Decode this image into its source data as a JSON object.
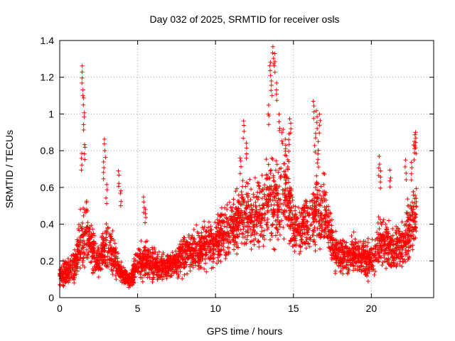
{
  "chart_data": {
    "type": "scatter",
    "title": "Day 032 of 2025, SRMTID for receiver osls",
    "xlabel": "GPS time / hours",
    "ylabel": "SRMTID / TECUs",
    "xlim": [
      0,
      24
    ],
    "ylim": [
      0,
      1.4
    ],
    "xticks": [
      "0",
      "5",
      "10",
      "15",
      "20"
    ],
    "yticks": [
      "0",
      "0.2",
      "0.4",
      "0.6",
      "0.8",
      "1",
      "1.2",
      "1.4"
    ],
    "grid": true,
    "marker": "+",
    "color": "#ff0000",
    "series": [
      {
        "name": "SRMTID",
        "profile": [
          [
            0.0,
            0.12,
            0.08
          ],
          [
            0.5,
            0.14,
            0.1
          ],
          [
            1.0,
            0.18,
            0.14
          ],
          [
            1.4,
            0.32,
            0.22
          ],
          [
            1.7,
            0.38,
            0.25
          ],
          [
            2.0,
            0.28,
            0.18
          ],
          [
            2.5,
            0.2,
            0.12
          ],
          [
            3.0,
            0.28,
            0.22
          ],
          [
            3.5,
            0.22,
            0.15
          ],
          [
            4.0,
            0.12,
            0.06
          ],
          [
            4.5,
            0.1,
            0.06
          ],
          [
            5.0,
            0.18,
            0.12
          ],
          [
            5.5,
            0.22,
            0.14
          ],
          [
            6.0,
            0.18,
            0.12
          ],
          [
            6.5,
            0.16,
            0.1
          ],
          [
            7.0,
            0.18,
            0.1
          ],
          [
            7.5,
            0.2,
            0.12
          ],
          [
            8.0,
            0.24,
            0.14
          ],
          [
            9.0,
            0.27,
            0.15
          ],
          [
            10.0,
            0.3,
            0.17
          ],
          [
            10.5,
            0.36,
            0.2
          ],
          [
            11.0,
            0.38,
            0.22
          ],
          [
            11.5,
            0.42,
            0.25
          ],
          [
            12.0,
            0.46,
            0.28
          ],
          [
            12.5,
            0.44,
            0.25
          ],
          [
            13.0,
            0.46,
            0.25
          ],
          [
            13.5,
            0.55,
            0.35
          ],
          [
            14.0,
            0.52,
            0.35
          ],
          [
            14.5,
            0.6,
            0.32
          ],
          [
            15.0,
            0.4,
            0.2
          ],
          [
            15.5,
            0.38,
            0.18
          ],
          [
            16.0,
            0.4,
            0.2
          ],
          [
            16.5,
            0.5,
            0.3
          ],
          [
            17.0,
            0.45,
            0.25
          ],
          [
            17.5,
            0.28,
            0.16
          ],
          [
            18.0,
            0.24,
            0.14
          ],
          [
            18.5,
            0.22,
            0.12
          ],
          [
            19.0,
            0.24,
            0.14
          ],
          [
            19.5,
            0.22,
            0.14
          ],
          [
            20.0,
            0.2,
            0.14
          ],
          [
            20.5,
            0.3,
            0.2
          ],
          [
            21.0,
            0.3,
            0.18
          ],
          [
            21.5,
            0.26,
            0.16
          ],
          [
            22.0,
            0.28,
            0.18
          ],
          [
            22.5,
            0.38,
            0.25
          ],
          [
            22.9,
            0.45,
            0.25
          ]
        ],
        "peaks": [
          [
            1.45,
            1.27
          ],
          [
            1.5,
            1.15
          ],
          [
            1.55,
            1.02
          ],
          [
            1.6,
            0.85
          ],
          [
            1.4,
            0.8
          ],
          [
            2.9,
            0.87
          ],
          [
            2.8,
            0.75
          ],
          [
            3.0,
            0.62
          ],
          [
            3.8,
            0.7
          ],
          [
            3.9,
            0.6
          ],
          [
            5.4,
            0.56
          ],
          [
            5.5,
            0.5
          ],
          [
            11.8,
            0.97
          ],
          [
            12.0,
            0.85
          ],
          [
            11.6,
            0.78
          ],
          [
            13.5,
            1.3
          ],
          [
            13.7,
            1.37
          ],
          [
            13.8,
            1.33
          ],
          [
            13.6,
            1.2
          ],
          [
            13.9,
            1.18
          ],
          [
            13.4,
            1.05
          ],
          [
            14.1,
            1.0
          ],
          [
            14.3,
            0.93
          ],
          [
            14.5,
            0.88
          ],
          [
            14.8,
            0.99
          ],
          [
            14.7,
            0.9
          ],
          [
            16.3,
            1.08
          ],
          [
            16.5,
            1.02
          ],
          [
            16.7,
            1.0
          ],
          [
            16.4,
            0.9
          ],
          [
            16.6,
            0.85
          ],
          [
            20.5,
            0.77
          ],
          [
            20.6,
            0.7
          ],
          [
            21.2,
            0.7
          ],
          [
            22.2,
            0.75
          ],
          [
            22.6,
            0.75
          ],
          [
            22.8,
            0.92
          ],
          [
            22.85,
            0.88
          ],
          [
            22.75,
            0.85
          ]
        ],
        "n_points": 3400
      }
    ]
  }
}
